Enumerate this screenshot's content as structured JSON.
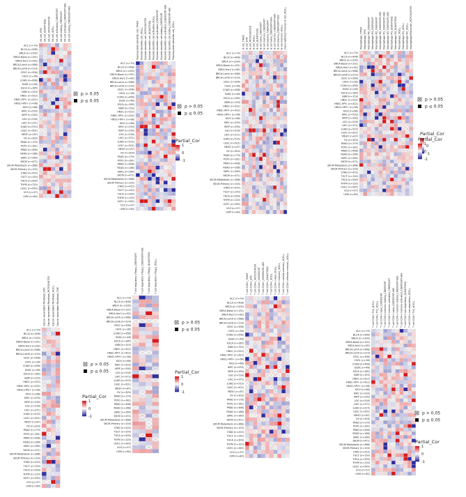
{
  "colors": {
    "high": "#d7191c",
    "mid": "#ffffff",
    "low": "#2c2c9c",
    "grid": "#d0d0d0",
    "cross": "#9a9a9a"
  },
  "legend": {
    "title": "Partial_Cor",
    "nonsig": "p > 0.05",
    "sig": "p ≤ 0.05",
    "ticks": [
      "1",
      "0",
      "-1"
    ]
  },
  "chart_data": [
    {
      "type": "heatmap",
      "rows": [
        "ACC (n=79)",
        "BLCA (n=408)",
        "BRCA (n=1100)",
        "BRCA-Basal (n=191)",
        "BRCA-Her2 (n=82)",
        "BRCA-LumA (n=568)",
        "BRCA-LumB (n=219)",
        "CESC (n=306)",
        "CHOL (n=36)",
        "COAD (n=458)",
        "DLBC (n=48)",
        "ESCA (n=185)",
        "GBM (n=153)",
        "HNSC (n=522)",
        "HNSC-HPV- (n=422)",
        "HNSC-HPV+ (n=98)",
        "KICH (n=66)",
        "KIRC (n=533)",
        "KIRP (n=290)",
        "LGG (n=516)",
        "LIHC (n=371)",
        "LUAD (n=515)",
        "LUSC (n=501)",
        "MESO (n=87)",
        "OV (n=303)",
        "PAAD (n=179)",
        "PCPG (n=181)",
        "PRAD (n=498)",
        "READ (n=166)",
        "SARC (n=260)",
        "SKCM (n=471)",
        "SKCM-Metastasis (n=368)",
        "SKCM-Primary (n=103)",
        "STAD (n=415)",
        "TGCT (n=150)",
        "THCA (n=509)",
        "THYM (n=120)",
        "UCEC (n=545)",
        "UCS (n=57)",
        "UVM (n=80)"
      ],
      "columns": [
        "NK cell_EPIC",
        "NK cell_QUANTISEQ",
        "NK cell_MCPCOUNTER",
        "NK cell_XCELL",
        "NK cell activated_CIBERSORT",
        "NK cell resting_CIBERSORT",
        "NK cell activated_CIBERSORT-ABS",
        "NK cell resting_CIBERSORT-ABS"
      ],
      "values_note": "",
      "pattern": 1
    },
    {
      "type": "heatmap",
      "rows": [
        "ACC (n=79)",
        "BLCA (n=408)",
        "BRCA (n=1100)",
        "BRCA-Basal (n=191)",
        "BRCA-Her2 (n=82)",
        "BRCA-LumA (n=568)",
        "BRCA-LumB (n=219)",
        "CESC (n=306)",
        "CHOL (n=36)",
        "COAD (n=458)",
        "DLBC (n=48)",
        "ESCA (n=185)",
        "GBM (n=153)",
        "HNSC (n=522)",
        "HNSC-HPV- (n=422)",
        "HNSC-HPV+ (n=98)",
        "KICH (n=66)",
        "KIRC (n=533)",
        "KIRP (n=290)",
        "LGG (n=516)",
        "LIHC (n=371)",
        "LUAD (n=515)",
        "LUSC (n=501)",
        "MESO (n=87)",
        "OV (n=303)",
        "PAAD (n=179)",
        "PCPG (n=181)",
        "PRAD (n=498)",
        "READ (n=166)",
        "SARC (n=260)",
        "SKCM (n=471)",
        "SKCM-Metastasis (n=368)",
        "SKCM-Primary (n=103)",
        "STAD (n=415)",
        "TGCT (n=150)",
        "THCA (n=509)",
        "THYM (n=120)",
        "UCEC (n=545)",
        "UCS (n=57)",
        "UVM (n=80)"
      ],
      "columns": [
        "Plasmacytoid dendritic cell_TIMER",
        "Myeloid dendritic cell_XCELL",
        "Myeloid dendritic cell_MCPCOUNTER",
        "Myeloid dendritic cell_QUANTISEQ",
        "Myeloid dendritic cell activated_XCELL",
        "Myeloid dendritic cell activated_CIBERSORT",
        "Myeloid dendritic cell resting_CIBERSORT",
        "Myeloid dendritic cell activated_CIBERSORT-ABS",
        "Myeloid dendritic cell resting_CIBERSORT-ABS",
        "Plasmacytoid dendritic cell_XCELL"
      ],
      "pattern": 2
    },
    {
      "type": "heatmap",
      "rows": [
        "ACC (n=79)",
        "BLCA (n=408)",
        "BRCA (n=1100)",
        "BRCA-Basal (n=191)",
        "BRCA-Her2 (n=82)",
        "BRCA-LumA (n=568)",
        "BRCA-LumB (n=219)",
        "CESC (n=306)",
        "CHOL (n=36)",
        "COAD (n=458)",
        "DLBC (n=48)",
        "ESCA (n=185)",
        "GBM (n=153)",
        "HNSC (n=522)",
        "HNSC-HPV- (n=422)",
        "HNSC-HPV+ (n=98)",
        "KICH (n=66)",
        "KIRC (n=533)",
        "KIRP (n=290)",
        "LGG (n=516)",
        "LIHC (n=371)",
        "LUAD (n=515)",
        "LUSC (n=501)",
        "MESO (n=87)",
        "OV (n=303)",
        "PAAD (n=179)",
        "PCPG (n=181)",
        "PRAD (n=498)",
        "READ (n=166)",
        "SARC (n=260)",
        "SKCM (n=471)",
        "SKCM-Metastasis (n=368)",
        "SKCM-Primary (n=103)",
        "STAD (n=415)",
        "TGCT (n=150)",
        "THCA (n=509)",
        "THYM (n=120)",
        "UCEC (n=545)",
        "UCS (n=57)",
        "UVM (n=80)"
      ],
      "columns": [
        "B cell_TIMER",
        "B cell_EPIC",
        "B cell_MCPCOUNTER",
        "B cell_XCELL",
        "B cell_QUANTISEQ",
        "B cell naive_CIBERSORT",
        "B cell memory_CIBERSORT",
        "B cell plasma_CIBERSORT",
        "B cell naive_CIBERSORT-ABS",
        "B cell memory_CIBERSORT-ABS",
        "B cell plasma_CIBERSORT-ABS",
        "B cell memory_XCELL",
        "Class-switched memory B cell_XCELL"
      ],
      "pattern": 3
    },
    {
      "type": "heatmap",
      "rows": [
        "ACC (n=79)",
        "BLCA (n=408)",
        "BRCA (n=1100)",
        "BRCA-Basal (n=191)",
        "BRCA-Her2 (n=82)",
        "BRCA-LumA (n=568)",
        "BRCA-LumB (n=219)",
        "CESC (n=306)",
        "CHOL (n=36)",
        "COAD (n=458)",
        "DLBC (n=48)",
        "ESCA (n=185)",
        "GBM (n=153)",
        "HNSC (n=522)",
        "HNSC-HPV- (n=422)",
        "HNSC-HPV+ (n=98)",
        "KICH (n=66)",
        "KIRC (n=533)",
        "KIRP (n=290)",
        "LGG (n=516)",
        "LIHC (n=371)",
        "LUAD (n=515)",
        "LUSC (n=501)",
        "MESO (n=87)",
        "OV (n=303)",
        "PAAD (n=179)",
        "PCPG (n=181)",
        "PRAD (n=498)",
        "READ (n=166)",
        "SARC (n=260)",
        "SKCM (n=471)",
        "SKCM-Metastasis (n=368)",
        "SKCM-Primary (n=103)",
        "STAD (n=415)",
        "TGCT (n=150)",
        "THCA (n=509)",
        "THYM (n=120)",
        "UCEC (n=545)",
        "UCS (n=57)",
        "UVM (n=80)"
      ],
      "columns": [
        "Macrophage_TIMER",
        "Macrophage_EPIC",
        "Macrophage M0_CIBERSORT",
        "Macrophage M1_CIBERSORT",
        "Macrophage M2_CIBERSORT",
        "Macrophage M0_CIBERSORT-ABS",
        "Macrophage M1_CIBERSORT-ABS",
        "Macrophage M2_CIBERSORT-ABS",
        "Macrophage M1_QUANTISEQ",
        "Macrophage M2_QUANTISEQ",
        "Macrophage_XCELL",
        "Macrophage M1_XCELL",
        "Macrophage M2_XCELL",
        "Macrophage/Monocyte_MCPCOUNTER"
      ],
      "pattern": 4
    },
    {
      "type": "heatmap",
      "rows": [
        "ACC (n=79)",
        "BLCA (n=408)",
        "BRCA (n=1100)",
        "BRCA-Basal (n=191)",
        "BRCA-Her2 (n=82)",
        "BRCA-LumA (n=568)",
        "BRCA-LumB (n=219)",
        "CESC (n=306)",
        "CHOL (n=36)",
        "COAD (n=458)",
        "DLBC (n=48)",
        "ESCA (n=185)",
        "GBM (n=153)",
        "HNSC (n=522)",
        "HNSC-HPV- (n=422)",
        "HNSC-HPV+ (n=98)",
        "KICH (n=66)",
        "KIRC (n=533)",
        "KIRP (n=290)",
        "LGG (n=516)",
        "LIHC (n=371)",
        "LUAD (n=515)",
        "LUSC (n=501)",
        "MESO (n=87)",
        "OV (n=303)",
        "PAAD (n=179)",
        "PCPG (n=181)",
        "PRAD (n=498)",
        "READ (n=166)",
        "SARC (n=260)",
        "SKCM (n=471)",
        "SKCM-Metastasis (n=368)",
        "SKCM-Primary (n=103)",
        "STAD (n=415)",
        "TGCT (n=150)",
        "THCA (n=509)",
        "THYM (n=120)",
        "UCEC (n=545)",
        "UCS (n=57)",
        "UVM (n=80)"
      ],
      "columns": [
        "Cancer associated fibroblast_EPIC",
        "Cancer associated fibroblast_MCPCOUNTER",
        "Cancer associated fibroblast_XCELL",
        "Cancer associated fibroblast_TIDE"
      ],
      "pattern": 5
    },
    {
      "type": "heatmap",
      "rows": [
        "ACC (n=79)",
        "BLCA (n=408)",
        "BRCA (n=1100)",
        "BRCA-Basal (n=191)",
        "BRCA-Her2 (n=82)",
        "BRCA-LumA (n=568)",
        "BRCA-LumB (n=219)",
        "CESC (n=306)",
        "CHOL (n=36)",
        "COAD (n=458)",
        "DLBC (n=48)",
        "ESCA (n=185)",
        "GBM (n=153)",
        "HNSC (n=522)",
        "HNSC-HPV- (n=422)",
        "HNSC-HPV+ (n=98)",
        "KICH (n=66)",
        "KIRC (n=533)",
        "KIRP (n=290)",
        "LGG (n=516)",
        "LIHC (n=371)",
        "LUAD (n=515)",
        "LUSC (n=501)",
        "MESO (n=87)",
        "OV (n=303)",
        "PAAD (n=179)",
        "PCPG (n=181)",
        "PRAD (n=498)",
        "READ (n=166)",
        "SARC (n=260)",
        "SKCM (n=471)",
        "SKCM-Metastasis (n=368)",
        "SKCM-Primary (n=103)",
        "STAD (n=415)",
        "TGCT (n=150)",
        "THCA (n=509)",
        "THYM (n=120)",
        "UCEC (n=545)",
        "UCS (n=57)",
        "UVM (n=80)"
      ],
      "columns": [
        "T cell regulatory (Tregs)_CIBERSORT",
        "T cell regulatory (Tregs)_CIBERSORT-ABS",
        "T cell regulatory (Tregs)_QUANTISEQ",
        "T cell regulatory (Tregs)_XCELL"
      ],
      "pattern": 6
    },
    {
      "type": "heatmap",
      "rows": [
        "ACC (n=79)",
        "BLCA (n=408)",
        "BRCA (n=1100)",
        "BRCA-Basal (n=191)",
        "BRCA-Her2 (n=82)",
        "BRCA-LumA (n=568)",
        "BRCA-LumB (n=219)",
        "CESC (n=306)",
        "CHOL (n=36)",
        "COAD (n=458)",
        "DLBC (n=48)",
        "ESCA (n=185)",
        "GBM (n=153)",
        "HNSC (n=522)",
        "HNSC-HPV- (n=422)",
        "HNSC-HPV+ (n=98)",
        "KICH (n=66)",
        "KIRC (n=533)",
        "KIRP (n=290)",
        "LGG (n=516)",
        "LIHC (n=371)",
        "LUAD (n=515)",
        "LUSC (n=501)",
        "MESO (n=87)",
        "OV (n=303)",
        "PAAD (n=179)",
        "PCPG (n=181)",
        "PRAD (n=498)",
        "READ (n=166)",
        "SARC (n=260)",
        "SKCM (n=471)",
        "SKCM-Metastasis (n=368)",
        "SKCM-Primary (n=103)",
        "STAD (n=415)",
        "TGCT (n=150)",
        "THCA (n=509)",
        "THYM (n=120)",
        "UCEC (n=545)",
        "UCS (n=57)",
        "UVM (n=80)"
      ],
      "columns": [
        "T cell CD4+_TIMER",
        "T cell CD4+_EPIC",
        "T cell CD4+_MCPCOUNTER",
        "T cell CD4+_CIBERSORT",
        "T cell CD4+_CIBERSORT-ABS",
        "T cell CD4+_QUANTISEQ",
        "T cell CD4+_XCELL",
        "T cell CD4+ naive_XCELL",
        "T cell CD4+ memory_XCELL",
        "T cell CD4+ central memory_XCELL",
        "T cell CD4+ effector memory_XCELL"
      ],
      "pattern": 7
    },
    {
      "type": "heatmap",
      "rows": [
        "ACC (n=79)",
        "BLCA (n=408)",
        "BRCA (n=1100)",
        "BRCA-Basal (n=191)",
        "BRCA-Her2 (n=82)",
        "BRCA-LumA (n=568)",
        "BRCA-LumB (n=219)",
        "CESC (n=306)",
        "CHOL (n=36)",
        "COAD (n=458)",
        "DLBC (n=48)",
        "ESCA (n=185)",
        "GBM (n=153)",
        "HNSC (n=522)",
        "HNSC-HPV- (n=422)",
        "HNSC-HPV+ (n=98)",
        "KICH (n=66)",
        "KIRC (n=533)",
        "KIRP (n=290)",
        "LGG (n=516)",
        "LIHC (n=371)",
        "LUAD (n=515)",
        "LUSC (n=501)",
        "MESO (n=87)",
        "OV (n=303)",
        "PAAD (n=179)",
        "PCPG (n=181)",
        "PRAD (n=498)",
        "READ (n=166)",
        "SARC (n=260)",
        "SKCM (n=471)",
        "SKCM-Metastasis (n=368)",
        "SKCM-Primary (n=103)",
        "STAD (n=415)",
        "TGCT (n=150)",
        "THCA (n=509)",
        "THYM (n=120)",
        "UCEC (n=545)",
        "UCS (n=57)",
        "UVM (n=80)"
      ],
      "columns": [
        "T cell CD4+ Th1_XCELL",
        "T cell CD4+ Th2_XCELL",
        "T cell CD4+ naive_CIBERSORT",
        "T cell CD4+ memory resting_CIBERSORT",
        "T cell CD4+ memory activated_CIBERSORT",
        "T cell CD4+ naive_CIBERSORT-ABS",
        "T cell CD4+ memory resting_CIBERSORT-ABS",
        "T cell CD4+ memory activated_CIBERSORT-ABS",
        "T cell CD4+ non-regulatory_QUANTISEQ",
        "T cell CD4+ non-regulatory_XCELL",
        "T cell CD4+ Th1_XCELL"
      ],
      "pattern": 8
    }
  ]
}
